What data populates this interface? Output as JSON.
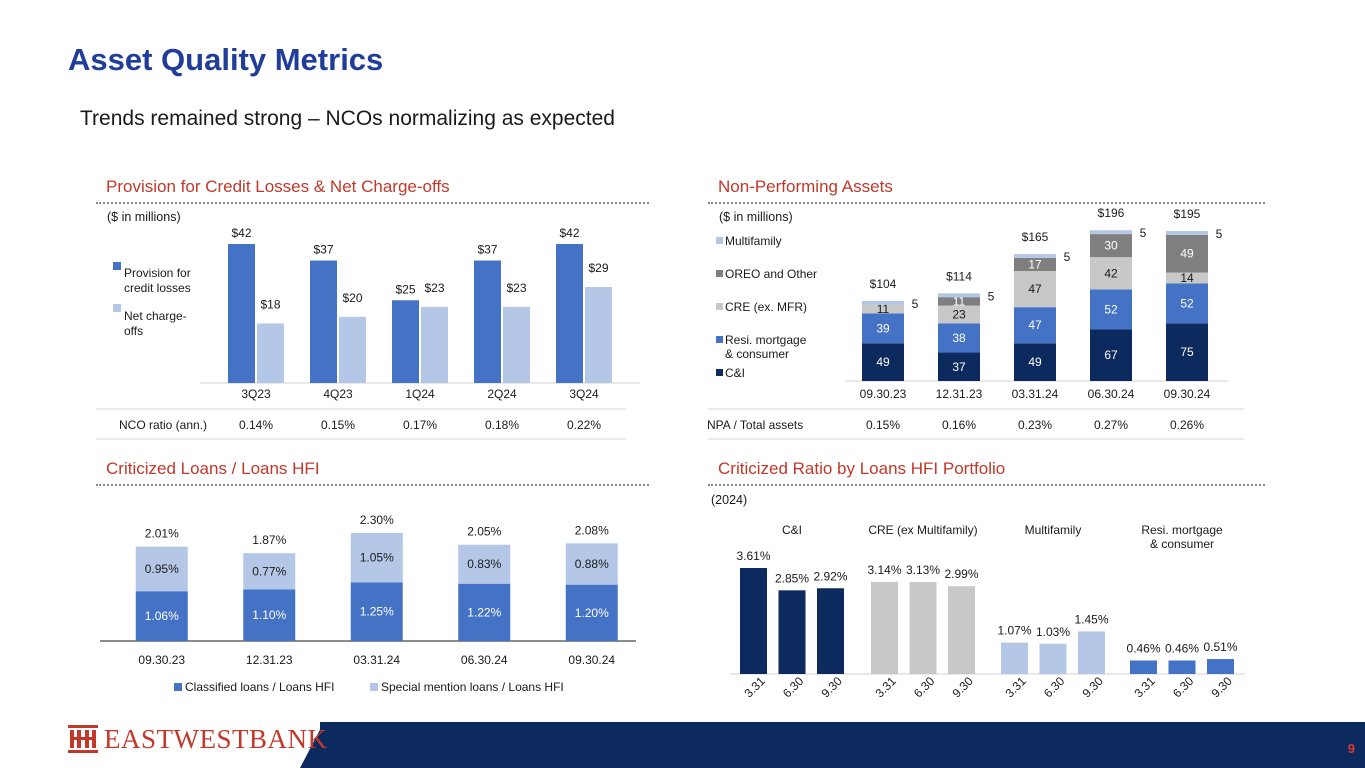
{
  "page": {
    "title": "Asset Quality Metrics",
    "subtitle": "Trends remained strong – NCOs normalizing as expected",
    "page_number": "9",
    "logo_text": "EASTWESTBANK",
    "colors": {
      "navy": "#0d2a5e",
      "blue": "#4472c4",
      "light_blue": "#b4c7e7",
      "gray": "#c8c8c8",
      "dark_gray": "#7f7f7f",
      "red": "#c0392b",
      "title_blue": "#1f3d99"
    }
  },
  "chart_data": [
    {
      "id": "provision",
      "type": "bar",
      "title": "Provision for Credit Losses & Net Charge-offs",
      "unit_note": "($ in millions)",
      "categories": [
        "3Q23",
        "4Q23",
        "1Q24",
        "2Q24",
        "3Q24"
      ],
      "series": [
        {
          "name": "Provision for credit losses",
          "values": [
            42,
            37,
            25,
            37,
            42
          ],
          "labels": [
            "$42",
            "$37",
            "$25",
            "$37",
            "$42"
          ],
          "color": "#4472c4"
        },
        {
          "name": "Net charge-offs",
          "values": [
            18,
            20,
            23,
            23,
            29
          ],
          "labels": [
            "$18",
            "$20",
            "$23",
            "$23",
            "$29"
          ],
          "color": "#b4c7e7"
        }
      ],
      "ylim": [
        0,
        42
      ],
      "table": {
        "label": "NCO ratio (ann.)",
        "values": [
          "0.14%",
          "0.15%",
          "0.17%",
          "0.18%",
          "0.22%"
        ]
      }
    },
    {
      "id": "npa",
      "type": "bar",
      "stacked": true,
      "title": "Non-Performing Assets",
      "unit_note": "($ in millions)",
      "categories": [
        "09.30.23",
        "12.31.23",
        "03.31.24",
        "06.30.24",
        "09.30.24"
      ],
      "series": [
        {
          "name": "C&I",
          "values": [
            49,
            37,
            49,
            67,
            75
          ],
          "color": "#0d2a5e"
        },
        {
          "name": "Resi. mortgage & consumer",
          "values": [
            39,
            38,
            47,
            52,
            52
          ],
          "color": "#4472c4"
        },
        {
          "name": "CRE (ex. MFR)",
          "values": [
            11,
            23,
            47,
            42,
            14
          ],
          "color": "#c8c8c8"
        },
        {
          "name": "OREO and Other",
          "values": [
            0,
            11,
            17,
            30,
            49
          ],
          "color": "#7f7f7f"
        },
        {
          "name": "Multifamily",
          "values": [
            5,
            5,
            5,
            5,
            5
          ],
          "color": "#b4c7e7"
        }
      ],
      "legend_order": [
        "Multifamily",
        "OREO and Other",
        "CRE (ex. MFR)",
        "Resi. mortgage & consumer",
        "C&I"
      ],
      "totals": [
        "$104",
        "$114",
        "$165",
        "$196",
        "$195"
      ],
      "ylim": [
        0,
        196
      ],
      "table": {
        "label": "NPA / Total assets",
        "values": [
          "0.15%",
          "0.16%",
          "0.23%",
          "0.27%",
          "0.26%"
        ]
      }
    },
    {
      "id": "criticized",
      "type": "bar",
      "stacked": true,
      "title": "Criticized Loans / Loans HFI",
      "categories": [
        "09.30.23",
        "12.31.23",
        "03.31.24",
        "06.30.24",
        "09.30.24"
      ],
      "series": [
        {
          "name": "Classified loans / Loans HFI",
          "values": [
            1.06,
            1.1,
            1.25,
            1.22,
            1.2
          ],
          "labels": [
            "1.06%",
            "1.10%",
            "1.25%",
            "1.22%",
            "1.20%"
          ],
          "color": "#4472c4"
        },
        {
          "name": "Special mention loans / Loans HFI",
          "values": [
            0.95,
            0.77,
            1.05,
            0.83,
            0.88
          ],
          "labels": [
            "0.95%",
            "0.77%",
            "1.05%",
            "0.83%",
            "0.88%"
          ],
          "color": "#b4c7e7"
        }
      ],
      "totals": [
        "2.01%",
        "1.87%",
        "2.30%",
        "2.05%",
        "2.08%"
      ],
      "ylim": [
        0,
        2.3
      ]
    },
    {
      "id": "portfolio",
      "type": "bar",
      "title": "Criticized Ratio by Loans HFI Portfolio",
      "unit_note": "(2024)",
      "x": [
        "3.31",
        "6.30",
        "9.30"
      ],
      "groups": [
        {
          "name": "C&I",
          "values": [
            3.61,
            2.85,
            2.92
          ],
          "labels": [
            "3.61%",
            "2.85%",
            "2.92%"
          ],
          "color": "#0d2a5e"
        },
        {
          "name": "CRE (ex Multifamily)",
          "values": [
            3.14,
            3.13,
            2.99
          ],
          "labels": [
            "3.14%",
            "3.13%",
            "2.99%"
          ],
          "color": "#c8c8c8"
        },
        {
          "name": "Multifamily",
          "values": [
            1.07,
            1.03,
            1.45
          ],
          "labels": [
            "1.07%",
            "1.03%",
            "1.45%"
          ],
          "color": "#b4c7e7"
        },
        {
          "name": "Resi. mortgage & consumer",
          "values": [
            0.46,
            0.46,
            0.51
          ],
          "labels": [
            "0.46%",
            "0.46%",
            "0.51%"
          ],
          "color": "#4472c4"
        }
      ],
      "group_headers": [
        [
          "C&I"
        ],
        [
          "CRE (ex Multifamily)"
        ],
        [
          "Multifamily"
        ],
        [
          "Resi. mortgage",
          "& consumer"
        ]
      ],
      "ylim": [
        0,
        3.61
      ]
    }
  ]
}
